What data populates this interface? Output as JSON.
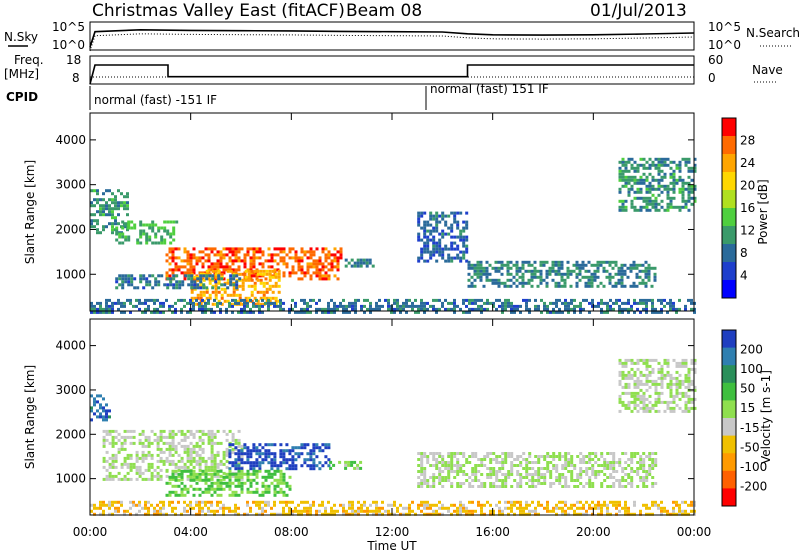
{
  "header": {
    "station": "Christmas Valley East (fitACF)",
    "beam": "Beam 08",
    "date": "01/Jul/2013"
  },
  "top_panels": {
    "nsky_label": "N.Sky",
    "nsearch_label": "N.Search",
    "noise_ticks": [
      "10^5",
      "10^0"
    ],
    "freq_label_1": "Freq.",
    "freq_label_2": "[MHz]",
    "freq_ticks": [
      "18",
      "8"
    ],
    "nave_label": "Nave",
    "nave_ticks": [
      "60",
      "0"
    ],
    "cpid_label": "CPID",
    "cpid_segments": [
      {
        "label": "normal (fast) -151 IF",
        "start_hour": 0,
        "end_hour": 13.3
      },
      {
        "label": "normal (fast) 151 IF",
        "start_hour": 13.3,
        "end_hour": 24
      }
    ]
  },
  "power_panel": {
    "ylabel": "Slant Range [km]",
    "colorbar_label": "Power [dB]",
    "colorbar_ticks": [
      "28",
      "24",
      "20",
      "16",
      "12",
      "8",
      "4"
    ],
    "colorbar_colors": [
      "#ff0000",
      "#ff6a00",
      "#ffa500",
      "#ffd700",
      "#b0e020",
      "#4fcf3f",
      "#3a9a6a",
      "#2a6a9a",
      "#1e3fcc",
      "#0000ff"
    ]
  },
  "velocity_panel": {
    "ylabel": "Slant Range [km]",
    "colorbar_label": "Velocity [m s-1]",
    "colorbar_ticks": [
      "200",
      "100",
      "50",
      "15",
      "-15",
      "-50",
      "-100",
      "-200"
    ],
    "colorbar_colors": [
      "#1f3fc0",
      "#2f7fb0",
      "#2a8f5a",
      "#3fbf3f",
      "#8fdf4f",
      "#c8c8c8",
      "#f0c000",
      "#ff9a00",
      "#ff6000",
      "#ff0000"
    ]
  },
  "x_axis": {
    "label": "Time UT",
    "ticks": [
      "00:00",
      "04:00",
      "08:00",
      "12:00",
      "16:00",
      "20:00",
      "00:00"
    ]
  },
  "chart_data": [
    {
      "type": "line",
      "title": "N.Sky / N.Search",
      "x": [
        0,
        0.2,
        2,
        4,
        6,
        8,
        10,
        12,
        14,
        15,
        16,
        18,
        20,
        22,
        24
      ],
      "series": [
        {
          "name": "N.Sky",
          "values": [
            1,
            3000,
            8000,
            6000,
            5000,
            4500,
            3500,
            3000,
            2500,
            1000,
            600,
            500,
            600,
            900,
            1500
          ]
        }
      ],
      "ylim_log10": [
        0,
        5
      ],
      "xlim": [
        0,
        24
      ]
    },
    {
      "type": "line",
      "title": "Freq. [MHz] / Nave",
      "x": [
        0,
        0.2,
        3.1,
        3.1,
        15.0,
        15.0,
        24
      ],
      "series": [
        {
          "name": "Freq.",
          "values": [
            8,
            14.8,
            14.8,
            10.6,
            10.6,
            14.8,
            14.8
          ]
        },
        {
          "name": "Nave",
          "values": [
            15,
            15,
            15,
            15,
            15,
            15,
            15
          ]
        }
      ],
      "ylim": [
        8,
        18
      ],
      "y2lim": [
        0,
        60
      ],
      "xlim": [
        0,
        24
      ]
    },
    {
      "type": "heatmap",
      "title": "Power [dB]",
      "xlabel": "Time UT",
      "ylabel": "Slant Range [km]",
      "xlim": [
        0,
        24
      ],
      "ylim": [
        180,
        4600
      ],
      "yticks": [
        1000,
        2000,
        3000,
        4000
      ],
      "color_scale": [
        0,
        30
      ],
      "regions": [
        {
          "t": [
            0.0,
            1.5
          ],
          "r": [
            1900,
            2900
          ],
          "value": 10
        },
        {
          "t": [
            1.0,
            3.5
          ],
          "r": [
            1700,
            2200
          ],
          "value": 12
        },
        {
          "t": [
            3.0,
            10.0
          ],
          "r": [
            900,
            1600
          ],
          "value": 26
        },
        {
          "t": [
            4.0,
            7.5
          ],
          "r": [
            350,
            1100
          ],
          "value": 22
        },
        {
          "t": [
            1.0,
            6.0
          ],
          "r": [
            700,
            1000
          ],
          "value": 8
        },
        {
          "t": [
            10.0,
            11.3
          ],
          "r": [
            1200,
            1350
          ],
          "value": 9
        },
        {
          "t": [
            13.0,
            15.0
          ],
          "r": [
            1300,
            2400
          ],
          "value": 7
        },
        {
          "t": [
            15.0,
            22.5
          ],
          "r": [
            750,
            1300
          ],
          "value": 9
        },
        {
          "t": [
            21.0,
            24.0
          ],
          "r": [
            2400,
            3600
          ],
          "value": 10
        },
        {
          "t": [
            0.0,
            24.0
          ],
          "r": [
            180,
            450
          ],
          "value": 8
        }
      ]
    },
    {
      "type": "heatmap",
      "title": "Velocity [m s-1]",
      "xlabel": "Time UT",
      "ylabel": "Slant Range [km]",
      "xlim": [
        0,
        24
      ],
      "ylim": [
        180,
        4600
      ],
      "yticks": [
        1000,
        2000,
        3000,
        4000
      ],
      "color_scale": [
        -200,
        200
      ],
      "regions": [
        {
          "t": [
            0.0,
            0.8
          ],
          "r": [
            2300,
            2900
          ],
          "value": 150
        },
        {
          "t": [
            0.5,
            6.0
          ],
          "r": [
            1000,
            2100
          ],
          "value": 0
        },
        {
          "t": [
            5.5,
            9.5
          ],
          "r": [
            1200,
            1800
          ],
          "value": 180
        },
        {
          "t": [
            3.0,
            8.0
          ],
          "r": [
            650,
            1200
          ],
          "value": 40
        },
        {
          "t": [
            9.5,
            11.0
          ],
          "r": [
            1200,
            1400
          ],
          "value": 30
        },
        {
          "t": [
            13.0,
            22.5
          ],
          "r": [
            800,
            1600
          ],
          "value": 0
        },
        {
          "t": [
            21.0,
            24.0
          ],
          "r": [
            2500,
            3700
          ],
          "value": 0
        },
        {
          "t": [
            0.0,
            24.0
          ],
          "r": [
            180,
            500
          ],
          "value": -60
        }
      ]
    }
  ]
}
